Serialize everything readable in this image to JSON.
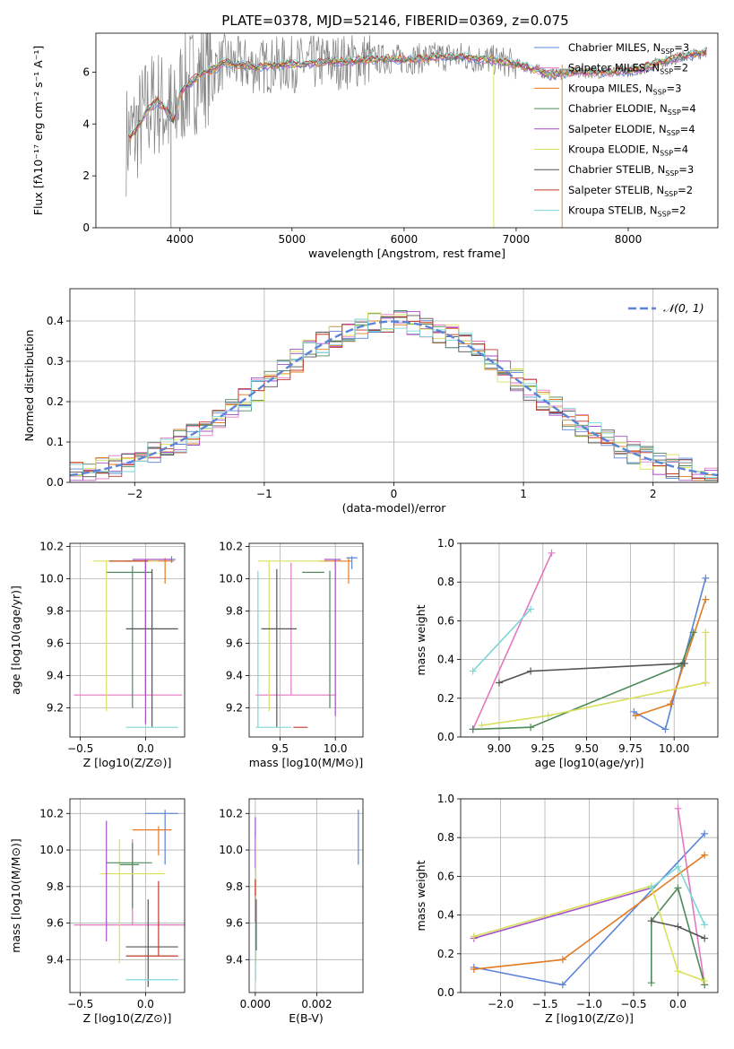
{
  "figure": {
    "title": "PLATE=0378, MJD=52146, FIBERID=0369, z=0.075"
  },
  "models": [
    {
      "name": "Chabrier MILES",
      "nssp": "3",
      "color": "#5b84d8"
    },
    {
      "name": "Salpeter MILES",
      "nssp": "2",
      "color": "#e377c2"
    },
    {
      "name": "Kroupa MILES",
      "nssp": "3",
      "color": "#e37b22"
    },
    {
      "name": "Chabrier ELODIE",
      "nssp": "4",
      "color": "#4e8a5a"
    },
    {
      "name": "Salpeter ELODIE",
      "nssp": "4",
      "color": "#a64fc8"
    },
    {
      "name": "Kroupa ELODIE",
      "nssp": "4",
      "color": "#d8e05a"
    },
    {
      "name": "Chabrier STELIB",
      "nssp": "3",
      "color": "#555555"
    },
    {
      "name": "Salpeter STELIB",
      "nssp": "2",
      "color": "#c0392b"
    },
    {
      "name": "Kroupa STELIB",
      "nssp": "2",
      "color": "#7fd6d6"
    }
  ],
  "chart_data": [
    {
      "id": "spectrum",
      "type": "line",
      "title": "PLATE=0378, MJD=52146, FIBERID=0369, z=0.075",
      "xlabel": "wavelength [Angstrom, rest frame]",
      "ylabel": "Flux [fλ10⁻¹⁷ erg cm⁻² s⁻¹ A⁻¹]",
      "xlim": [
        3250,
        8800
      ],
      "ylim": [
        0,
        7.5
      ],
      "xticks": [
        "4000",
        "5000",
        "6000",
        "7000",
        "8000"
      ],
      "yticks": [
        "0",
        "2",
        "4",
        "6"
      ],
      "legend": "upper-right",
      "continuum": [
        [
          3520,
          3.4
        ],
        [
          3600,
          3.7
        ],
        [
          3700,
          4.5
        ],
        [
          3800,
          4.9
        ],
        [
          3900,
          4.4
        ],
        [
          3950,
          4.1
        ],
        [
          4000,
          5.2
        ],
        [
          4100,
          5.6
        ],
        [
          4200,
          6.0
        ],
        [
          4300,
          6.1
        ],
        [
          4400,
          6.4
        ],
        [
          4500,
          6.3
        ],
        [
          4700,
          6.2
        ],
        [
          4900,
          6.3
        ],
        [
          5100,
          6.3
        ],
        [
          5300,
          6.4
        ],
        [
          5500,
          6.4
        ],
        [
          5700,
          6.5
        ],
        [
          5900,
          6.5
        ],
        [
          6100,
          6.5
        ],
        [
          6300,
          6.6
        ],
        [
          6500,
          6.6
        ],
        [
          6700,
          6.5
        ],
        [
          6900,
          6.4
        ],
        [
          7100,
          6.2
        ],
        [
          7300,
          5.9
        ],
        [
          7500,
          6.0
        ],
        [
          7700,
          6.0
        ],
        [
          7900,
          6.0
        ],
        [
          8100,
          6.1
        ],
        [
          8300,
          6.4
        ],
        [
          8500,
          6.6
        ],
        [
          8700,
          6.8
        ]
      ]
    },
    {
      "id": "residuals",
      "type": "bar",
      "xlabel": "(data-model)/error",
      "ylabel": "Normed distribution",
      "xlim": [
        -2.5,
        2.5
      ],
      "ylim": [
        0,
        0.48
      ],
      "xticks": [
        "−2",
        "−1",
        "0",
        "1",
        "2"
      ],
      "yticks": [
        "0.0",
        "0.1",
        "0.2",
        "0.3",
        "0.4"
      ],
      "legend_label": "𝒩(0, 1)",
      "legend": "top-right",
      "bin_width": 0.1
    },
    {
      "id": "z-age",
      "type": "scatter",
      "xlabel": "Z [log10(Z/Z⊙)]",
      "ylabel": "age  [log10(age/yr)]",
      "xlim": [
        -0.58,
        0.3
      ],
      "ylim": [
        9.02,
        10.22
      ],
      "xticks": [
        "−0.5",
        "0.0"
      ],
      "yticks": [
        "9.2",
        "9.4",
        "9.6",
        "9.8",
        "10.0",
        "10.2"
      ],
      "errorbars": [
        {
          "m": 0,
          "x": 0.2,
          "xl": 0.17,
          "xh": 0.23,
          "y": 10.12,
          "yl": 10.1,
          "yh": 10.14
        },
        {
          "m": 2,
          "x": 0.15,
          "xl": -0.15,
          "xh": 0.22,
          "y": 10.11,
          "yl": 9.97,
          "yh": 10.13
        },
        {
          "m": 1,
          "x": 0.0,
          "xl": -0.55,
          "xh": 0.28,
          "y": 9.28,
          "yl": 9.28,
          "yh": 10.1
        },
        {
          "m": 3,
          "x": -0.1,
          "xl": -0.3,
          "xh": 0.05,
          "y": 10.04,
          "yl": 9.2,
          "yh": 10.08
        },
        {
          "m": 5,
          "x": -0.3,
          "xl": -0.4,
          "xh": 0.1,
          "y": 10.11,
          "yl": 9.18,
          "yh": 10.11
        },
        {
          "m": 4,
          "x": 0.0,
          "xl": -0.1,
          "xh": 0.2,
          "y": 10.12,
          "yl": 9.1,
          "yh": 10.12
        },
        {
          "m": 6,
          "x": 0.05,
          "xl": -0.15,
          "xh": 0.25,
          "y": 9.69,
          "yl": 9.08,
          "yh": 10.06
        },
        {
          "m": 8,
          "x": 0.05,
          "xl": -0.15,
          "xh": 0.25,
          "y": 9.08,
          "yl": 9.08,
          "yh": 9.08
        },
        {
          "m": 7,
          "x": 0.02,
          "xl": -0.28,
          "xh": 0.02,
          "y": 10.11,
          "yl": 10.11,
          "yh": 10.11
        }
      ]
    },
    {
      "id": "mass-age",
      "type": "scatter",
      "xlabel": "mass [log10(M/M⊙)]",
      "xlim": [
        9.22,
        10.25
      ],
      "ylim": [
        9.02,
        10.22
      ],
      "xticks": [
        "9.5",
        "10.0"
      ],
      "yticks": [
        "9.2",
        "9.4",
        "9.6",
        "9.8",
        "10.0",
        "10.2"
      ],
      "errorbars": [
        {
          "m": 0,
          "x": 10.15,
          "xl": 10.1,
          "xh": 10.2,
          "y": 10.13,
          "yl": 10.06,
          "yh": 10.14
        },
        {
          "m": 2,
          "x": 10.12,
          "xl": 9.85,
          "xh": 10.15,
          "y": 10.11,
          "yl": 9.97,
          "yh": 10.13
        },
        {
          "m": 1,
          "x": 9.6,
          "xl": 9.28,
          "xh": 10.0,
          "y": 9.28,
          "yl": 9.28,
          "yh": 10.1
        },
        {
          "m": 3,
          "x": 9.95,
          "xl": 9.7,
          "xh": 9.9,
          "y": 10.04,
          "yl": 9.2,
          "yh": 10.05
        },
        {
          "m": 5,
          "x": 9.4,
          "xl": 9.3,
          "xh": 9.9,
          "y": 10.11,
          "yl": 9.18,
          "yh": 10.11
        },
        {
          "m": 4,
          "x": 10.0,
          "xl": 9.9,
          "xh": 10.05,
          "y": 10.12,
          "yl": 9.15,
          "yh": 10.12
        },
        {
          "m": 6,
          "x": 9.47,
          "xl": 9.33,
          "xh": 9.65,
          "y": 9.69,
          "yl": 9.08,
          "yh": 10.06
        },
        {
          "m": 8,
          "x": 9.3,
          "xl": 9.28,
          "xh": 9.6,
          "y": 9.08,
          "yl": 9.08,
          "yh": 10.05
        },
        {
          "m": 7,
          "x": 9.72,
          "xl": 9.62,
          "xh": 9.75,
          "y": 9.08,
          "yl": 9.08,
          "yh": 9.08
        }
      ]
    },
    {
      "id": "age-weight",
      "type": "line",
      "xlabel": "age  [log10(age/yr)]",
      "ylabel": "mass weight",
      "xlim": [
        8.78,
        10.25
      ],
      "ylim": [
        0,
        1
      ],
      "xticks": [
        "9.00",
        "9.25",
        "9.50",
        "9.75",
        "10.00"
      ],
      "yticks": [
        "0.0",
        "0.2",
        "0.4",
        "0.6",
        "0.8",
        "1.0"
      ],
      "series": [
        {
          "m": 0,
          "points": [
            [
              9.77,
              0.13
            ],
            [
              9.95,
              0.04
            ],
            [
              10.18,
              0.82
            ]
          ]
        },
        {
          "m": 1,
          "points": [
            [
              8.85,
              0.04
            ],
            [
              9.3,
              0.95
            ]
          ]
        },
        {
          "m": 2,
          "points": [
            [
              9.78,
              0.11
            ],
            [
              9.98,
              0.17
            ],
            [
              10.18,
              0.71
            ]
          ]
        },
        {
          "m": 3,
          "points": [
            [
              8.85,
              0.04
            ],
            [
              9.18,
              0.05
            ],
            [
              10.04,
              0.37
            ],
            [
              10.11,
              0.54
            ]
          ]
        },
        {
          "m": 4,
          "points": [
            [
              10.18,
              0.28
            ]
          ]
        },
        {
          "m": 5,
          "points": [
            [
              8.9,
              0.06
            ],
            [
              9.28,
              0.11
            ],
            [
              10.18,
              0.28
            ],
            [
              10.18,
              0.54
            ]
          ]
        },
        {
          "m": 6,
          "points": [
            [
              9.0,
              0.28
            ],
            [
              9.18,
              0.34
            ],
            [
              10.06,
              0.38
            ]
          ]
        },
        {
          "m": 8,
          "points": [
            [
              8.85,
              0.34
            ],
            [
              9.18,
              0.66
            ]
          ]
        }
      ]
    },
    {
      "id": "z-mass",
      "type": "scatter",
      "xlabel": "Z [log10(Z/Z⊙)]",
      "ylabel": "mass [log10(M/M⊙)]",
      "xlim": [
        -0.58,
        0.3
      ],
      "ylim": [
        9.22,
        10.28
      ],
      "xticks": [
        "−0.5",
        "0.0"
      ],
      "yticks": [
        "9.4",
        "9.6",
        "9.8",
        "10.0",
        "10.2"
      ],
      "errorbars": [
        {
          "m": 0,
          "x": 0.15,
          "xl": -0.0,
          "xh": 0.25,
          "y": 10.2,
          "yl": 9.92,
          "yh": 10.22
        },
        {
          "m": 2,
          "x": 0.1,
          "xl": -0.1,
          "xh": 0.2,
          "y": 10.11,
          "yl": 9.97,
          "yh": 10.13
        },
        {
          "m": 1,
          "x": -0.1,
          "xl": -0.55,
          "xh": 0.3,
          "y": 9.59,
          "yl": 9.59,
          "yh": 10.06
        },
        {
          "m": 3,
          "x": -0.1,
          "xl": -0.2,
          "xh": -0.05,
          "y": 9.92,
          "yl": 9.68,
          "yh": 10.04
        },
        {
          "m": 5,
          "x": -0.2,
          "xl": -0.35,
          "xh": 0.15,
          "y": 9.87,
          "yl": 9.38,
          "yh": 10.06
        },
        {
          "m": 4,
          "x": -0.3,
          "xl": -0.3,
          "xh": -0.3,
          "y": 9.95,
          "yl": 9.5,
          "yh": 10.16
        },
        {
          "m": 6,
          "x": 0.02,
          "xl": -0.15,
          "xh": 0.25,
          "y": 9.47,
          "yl": 9.25,
          "yh": 9.73
        },
        {
          "m": 8,
          "x": 0.05,
          "xl": -0.15,
          "xh": 0.25,
          "y": 9.29,
          "yl": 9.29,
          "yh": 9.29
        },
        {
          "m": 7,
          "x": 0.1,
          "xl": -0.15,
          "xh": 0.25,
          "y": 9.42,
          "yl": 9.42,
          "yh": 9.83
        },
        {
          "m": 3,
          "x": -0.25,
          "xl": -0.3,
          "xh": 0.05,
          "y": 9.93,
          "yl": 9.93,
          "yh": 9.93
        }
      ]
    },
    {
      "id": "ebv-mass",
      "type": "scatter",
      "xlabel": "E(B-V)",
      "xlim": [
        -0.0002,
        0.0035
      ],
      "ylim": [
        9.22,
        10.28
      ],
      "xticks": [
        "0.000",
        "0.002"
      ],
      "yticks": [
        "9.4",
        "9.6",
        "9.8",
        "10.0",
        "10.2"
      ],
      "errorbars": [
        {
          "m": 0,
          "x": 0.00335,
          "y": 10.05,
          "yl": 9.92,
          "yh": 10.22
        },
        {
          "m": 4,
          "x": 0.0,
          "y": 10.05,
          "yl": 9.9,
          "yh": 10.18
        },
        {
          "m": 5,
          "x": 2e-05,
          "y": 9.85,
          "yl": 9.38,
          "yh": 10.07
        },
        {
          "m": 7,
          "x": 0.0,
          "y": 9.72,
          "yl": 9.6,
          "yh": 9.84
        },
        {
          "m": 8,
          "x": 1e-05,
          "y": 9.5,
          "yl": 9.28,
          "yh": 9.75
        },
        {
          "m": 6,
          "x": 3e-05,
          "y": 9.6,
          "yl": 9.45,
          "yh": 9.73
        }
      ]
    },
    {
      "id": "z-weight",
      "type": "line",
      "xlabel": "Z [log10(Z/Z⊙)]",
      "ylabel": "mass weight",
      "xlim": [
        -2.45,
        0.45
      ],
      "ylim": [
        0,
        1
      ],
      "xticks": [
        "−2.0",
        "−1.5",
        "−1.0",
        "−0.5",
        "0.0"
      ],
      "yticks": [
        "0.0",
        "0.2",
        "0.4",
        "0.6",
        "0.8",
        "1.0"
      ],
      "series": [
        {
          "m": 0,
          "points": [
            [
              -2.3,
              0.13
            ],
            [
              -1.3,
              0.04
            ],
            [
              0.3,
              0.82
            ]
          ]
        },
        {
          "m": 1,
          "points": [
            [
              0.0,
              0.95
            ],
            [
              0.3,
              0.04
            ]
          ]
        },
        {
          "m": 2,
          "points": [
            [
              -2.3,
              0.12
            ],
            [
              -1.3,
              0.17
            ],
            [
              0.3,
              0.71
            ]
          ]
        },
        {
          "m": 3,
          "points": [
            [
              -0.3,
              0.05
            ],
            [
              -0.3,
              0.37
            ],
            [
              0.0,
              0.54
            ],
            [
              0.3,
              0.04
            ]
          ]
        },
        {
          "m": 4,
          "points": [
            [
              -2.3,
              0.28
            ],
            [
              -0.3,
              0.54
            ]
          ]
        },
        {
          "m": 5,
          "points": [
            [
              -2.3,
              0.29
            ],
            [
              -0.3,
              0.55
            ],
            [
              0.0,
              0.11
            ],
            [
              0.3,
              0.06
            ]
          ]
        },
        {
          "m": 6,
          "points": [
            [
              -0.3,
              0.37
            ],
            [
              0.0,
              0.34
            ],
            [
              0.3,
              0.28
            ]
          ]
        },
        {
          "m": 8,
          "points": [
            [
              -0.3,
              0.54
            ],
            [
              0.0,
              0.65
            ],
            [
              0.3,
              0.35
            ]
          ]
        }
      ]
    }
  ]
}
